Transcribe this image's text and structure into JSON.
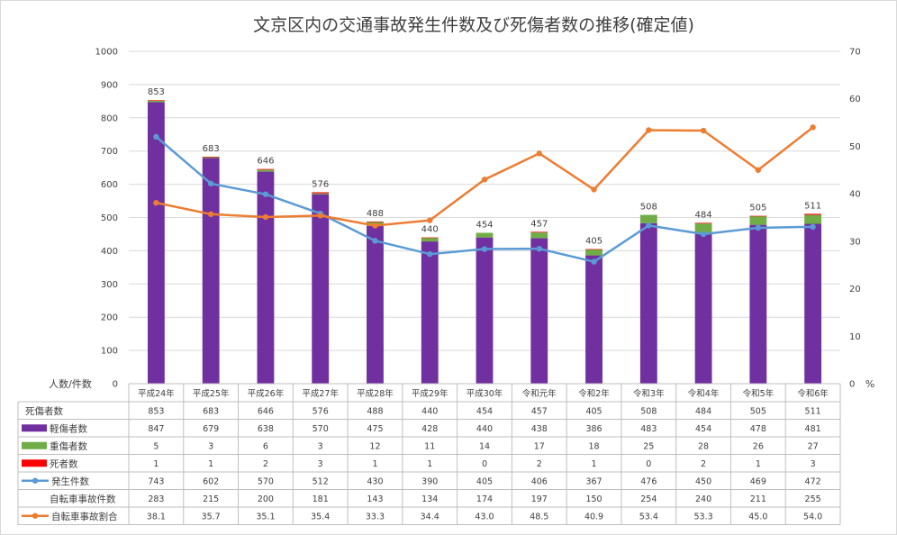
{
  "chart_data": {
    "type": "bar",
    "title": "文京区内の交通事故発生件数及び死傷者数の推移(確定値)",
    "y_left_label": "人数/件数",
    "y_right_label": "%",
    "y_left_range": [
      0,
      1000
    ],
    "y_left_ticks": [
      "0",
      "100",
      "200",
      "300",
      "400",
      "500",
      "600",
      "700",
      "800",
      "900",
      "1000"
    ],
    "y_right_range": [
      0,
      70
    ],
    "y_right_ticks": [
      "0",
      "10",
      "20",
      "30",
      "40",
      "50",
      "60",
      "70"
    ],
    "categories": [
      "平成24年",
      "平成25年",
      "平成26年",
      "平成27年",
      "平成28年",
      "平成29年",
      "平成30年",
      "令和元年",
      "令和2年",
      "令和3年",
      "令和4年",
      "令和5年",
      "令和6年"
    ],
    "series": [
      {
        "name": "死傷者数",
        "kind": "label",
        "color": "#404040",
        "values": [
          853,
          683,
          646,
          576,
          488,
          440,
          454,
          457,
          405,
          508,
          484,
          505,
          511
        ],
        "display": [
          "853",
          "683",
          "646",
          "576",
          "488",
          "440",
          "454",
          "457",
          "405",
          "508",
          "484",
          "505",
          "511"
        ]
      },
      {
        "name": "軽傷者数",
        "kind": "bar",
        "color": "#7030a0",
        "values": [
          847,
          679,
          638,
          570,
          475,
          428,
          440,
          438,
          386,
          483,
          454,
          478,
          481
        ],
        "display": [
          "847",
          "679",
          "638",
          "570",
          "475",
          "428",
          "440",
          "438",
          "386",
          "483",
          "454",
          "478",
          "481"
        ]
      },
      {
        "name": "重傷者数",
        "kind": "bar",
        "color": "#70ad47",
        "values": [
          5,
          3,
          6,
          3,
          12,
          11,
          14,
          17,
          18,
          25,
          28,
          26,
          27
        ],
        "display": [
          "5",
          "3",
          "6",
          "3",
          "12",
          "11",
          "14",
          "17",
          "18",
          "25",
          "28",
          "26",
          "27"
        ]
      },
      {
        "name": "死者数",
        "kind": "bar",
        "color": "#ff0000",
        "values": [
          1,
          1,
          2,
          3,
          1,
          1,
          0,
          2,
          1,
          0,
          2,
          1,
          3
        ],
        "display": [
          "1",
          "1",
          "2",
          "3",
          "1",
          "1",
          "0",
          "2",
          "1",
          "0",
          "2",
          "1",
          "3"
        ]
      },
      {
        "name": "発生件数",
        "kind": "line",
        "axis": "left",
        "color": "#5b9bd5",
        "values": [
          743,
          602,
          570,
          512,
          430,
          390,
          405,
          406,
          367,
          476,
          450,
          469,
          472
        ],
        "display": [
          "743",
          "602",
          "570",
          "512",
          "430",
          "390",
          "405",
          "406",
          "367",
          "476",
          "450",
          "469",
          "472"
        ]
      },
      {
        "name": "自転車事故件数",
        "kind": "none",
        "color": "#404040",
        "values": [
          283,
          215,
          200,
          181,
          143,
          134,
          174,
          197,
          150,
          254,
          240,
          211,
          255
        ],
        "display": [
          "283",
          "215",
          "200",
          "181",
          "143",
          "134",
          "174",
          "197",
          "150",
          "254",
          "240",
          "211",
          "255"
        ]
      },
      {
        "name": "自転車事故割合",
        "kind": "line",
        "axis": "right",
        "color": "#ed7d31",
        "values": [
          38.1,
          35.7,
          35.1,
          35.4,
          33.3,
          34.4,
          43.0,
          48.5,
          40.9,
          53.4,
          53.3,
          45.0,
          54.0
        ],
        "display": [
          "38.1",
          "35.7",
          "35.1",
          "35.4",
          "33.3",
          "34.4",
          "43.0",
          "48.5",
          "40.9",
          "53.4",
          "53.3",
          "45.0",
          "54.0"
        ]
      }
    ]
  }
}
